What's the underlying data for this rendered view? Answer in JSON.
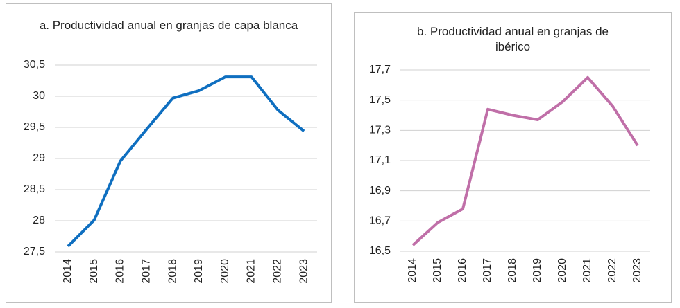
{
  "chart_data": [
    {
      "type": "line",
      "title": "a. Productividad anual en granjas de capa blanca",
      "categories": [
        "2014",
        "2015",
        "2016",
        "2017",
        "2018",
        "2019",
        "2020",
        "2021",
        "2022",
        "2023"
      ],
      "series": [
        {
          "color": "#0f6fc0",
          "values": [
            27.59,
            28.01,
            28.96,
            29.47,
            29.97,
            30.09,
            30.31,
            30.31,
            29.78,
            29.44
          ]
        }
      ],
      "ylim": [
        27.5,
        30.5
      ],
      "yticks": [
        {
          "value": 27.5,
          "label": "27,5"
        },
        28,
        {
          "value": 28.5,
          "label": "28,5"
        },
        29,
        {
          "value": 29.5,
          "label": "29,5"
        },
        30,
        {
          "value": 30.5,
          "label": "30,5"
        }
      ],
      "grid": true
    },
    {
      "type": "line",
      "title": "b. Productividad anual en granjas de ibérico",
      "categories": [
        "2014",
        "2015",
        "2016",
        "2017",
        "2018",
        "2019",
        "2020",
        "2021",
        "2022",
        "2023"
      ],
      "series": [
        {
          "color": "#c06fa8",
          "values": [
            16.54,
            16.69,
            16.78,
            17.44,
            17.4,
            17.37,
            17.49,
            17.65,
            17.46,
            17.2
          ]
        }
      ],
      "ylim": [
        16.5,
        17.7
      ],
      "yticks": [
        {
          "value": 16.5,
          "label": "16,5"
        },
        {
          "value": 16.7,
          "label": "16,7"
        },
        {
          "value": 16.9,
          "label": "16,9"
        },
        {
          "value": 17.1,
          "label": "17,1"
        },
        {
          "value": 17.3,
          "label": "17,3"
        },
        {
          "value": 17.5,
          "label": "17,5"
        },
        {
          "value": 17.7,
          "label": "17,7"
        }
      ],
      "grid": true
    }
  ]
}
